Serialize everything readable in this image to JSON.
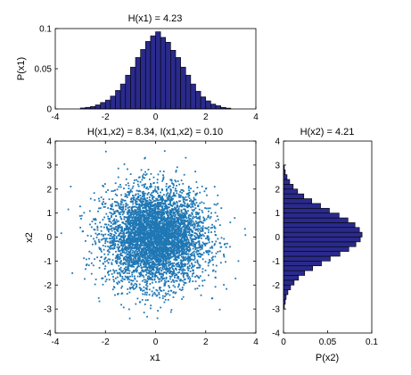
{
  "chart_data": [
    {
      "id": "hist_x1",
      "type": "bar",
      "title": "H(x1) = 4.23",
      "xlabel": "",
      "ylabel": "P(x1)",
      "xlim": [
        -4,
        4
      ],
      "ylim": [
        0,
        0.1
      ],
      "xticks": [
        "-4",
        "-2",
        "0",
        "2",
        "4"
      ],
      "yticks": [
        "0",
        "0.05",
        "0.1"
      ],
      "bin_edges": [
        -3.0,
        -2.8,
        -2.6,
        -2.4,
        -2.2,
        -2.0,
        -1.8,
        -1.6,
        -1.4,
        -1.2,
        -1.0,
        -0.8,
        -0.6,
        -0.4,
        -0.2,
        0.0,
        0.2,
        0.4,
        0.6,
        0.8,
        1.0,
        1.2,
        1.4,
        1.6,
        1.8,
        2.0,
        2.2,
        2.4,
        2.6,
        2.8,
        3.0
      ],
      "values": [
        0.0012,
        0.002,
        0.003,
        0.005,
        0.008,
        0.011,
        0.016,
        0.023,
        0.031,
        0.042,
        0.052,
        0.064,
        0.074,
        0.084,
        0.091,
        0.096,
        0.089,
        0.083,
        0.073,
        0.064,
        0.052,
        0.042,
        0.031,
        0.022,
        0.015,
        0.01,
        0.006,
        0.004,
        0.002,
        0.001
      ],
      "bar_color": "#2a2a8c",
      "edge_color": "#000000"
    },
    {
      "id": "scatter",
      "type": "scatter",
      "title": "H(x1,x2) = 8.34, I(x1,x2) = 0.10",
      "xlabel": "x1",
      "ylabel": "x2",
      "xlim": [
        -4,
        4
      ],
      "ylim": [
        -4,
        4
      ],
      "xticks": [
        "-4",
        "-2",
        "0",
        "2",
        "4"
      ],
      "yticks": [
        "-4",
        "-3",
        "-2",
        "-1",
        "0",
        "1",
        "2",
        "3",
        "4"
      ],
      "n_points": 5000,
      "distribution": "approx. standard normal in x1 and x2",
      "point_color": "#1f77b4"
    },
    {
      "id": "hist_x2",
      "type": "bar",
      "orientation": "horizontal",
      "title": "H(x2) = 4.21",
      "xlabel": "P(x2)",
      "ylabel": "",
      "xlim": [
        0,
        0.1
      ],
      "ylim": [
        -4,
        4
      ],
      "xticks": [
        "0",
        "0.05",
        "0.1"
      ],
      "yticks": [
        "-4",
        "-3",
        "-2",
        "-1",
        "0",
        "1",
        "2",
        "3",
        "4"
      ],
      "bin_edges": [
        -3.0,
        -2.8,
        -2.6,
        -2.4,
        -2.2,
        -2.0,
        -1.8,
        -1.6,
        -1.4,
        -1.2,
        -1.0,
        -0.8,
        -0.6,
        -0.4,
        -0.2,
        0.0,
        0.2,
        0.4,
        0.6,
        0.8,
        1.0,
        1.2,
        1.4,
        1.6,
        1.8,
        2.0,
        2.2,
        2.4,
        2.6,
        2.8,
        3.0
      ],
      "values": [
        0.001,
        0.002,
        0.003,
        0.005,
        0.008,
        0.012,
        0.017,
        0.024,
        0.033,
        0.043,
        0.053,
        0.064,
        0.074,
        0.082,
        0.087,
        0.089,
        0.086,
        0.081,
        0.073,
        0.063,
        0.052,
        0.042,
        0.032,
        0.023,
        0.016,
        0.011,
        0.007,
        0.004,
        0.002,
        0.001
      ],
      "bar_color": "#2a2a8c",
      "edge_color": "#000000"
    }
  ]
}
